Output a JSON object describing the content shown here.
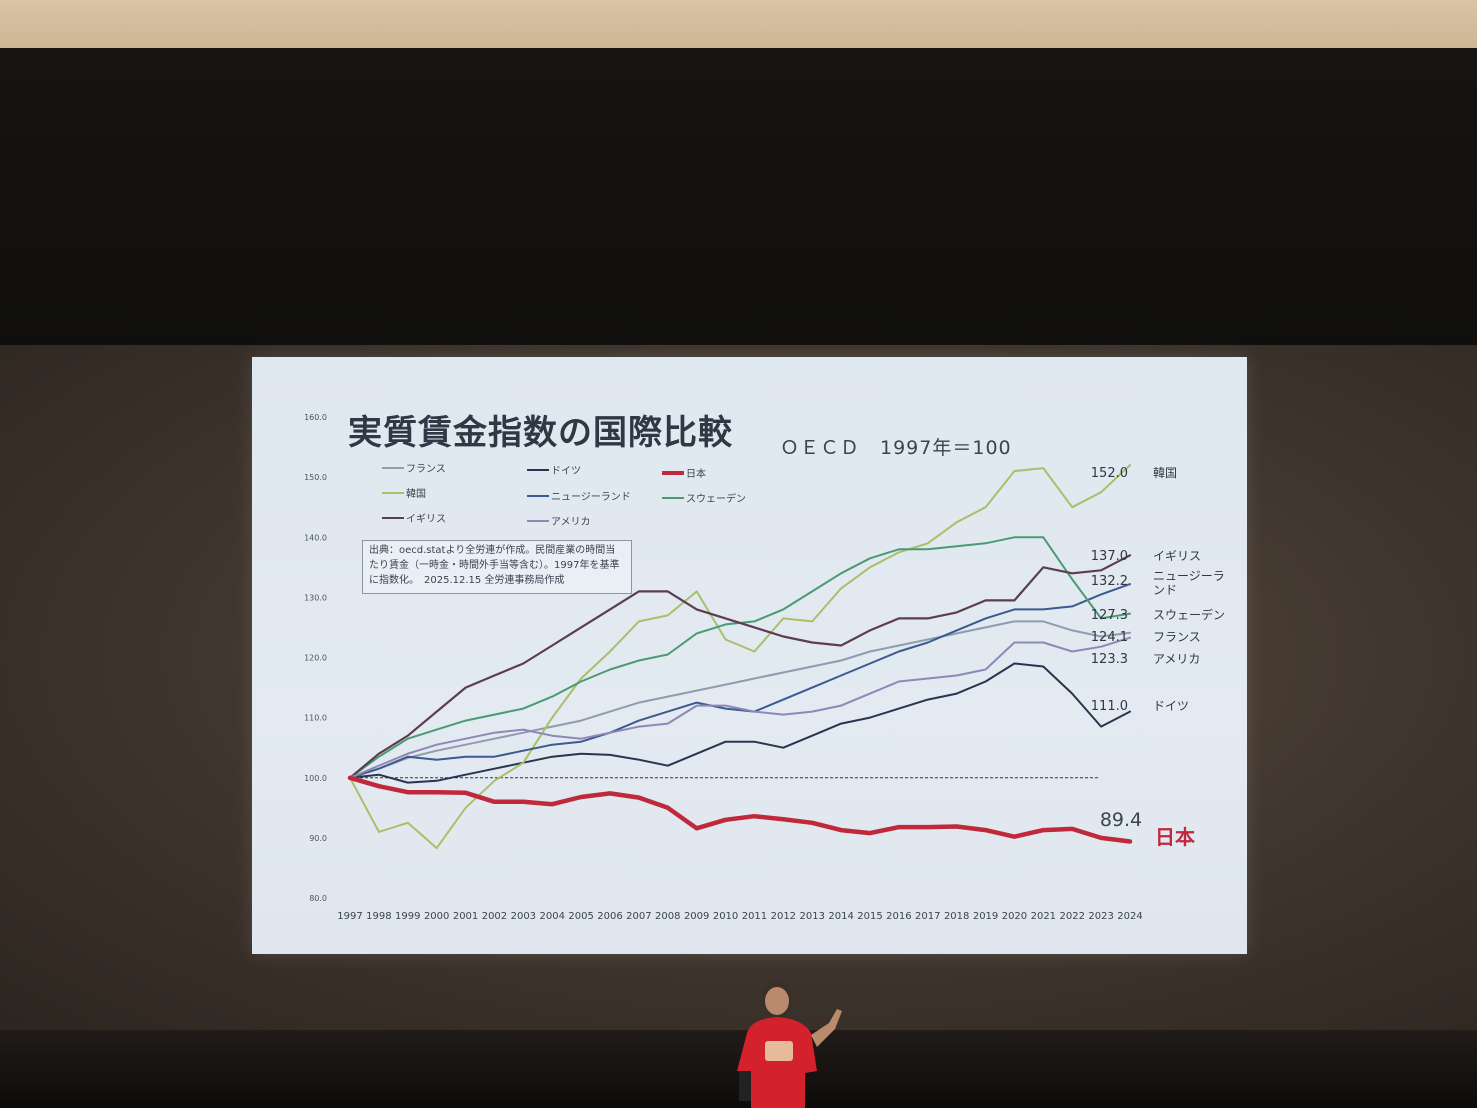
{
  "slide": {
    "title": "実質賃金指数の国際比較",
    "subtitle": "ＯＥＣＤ　1997年＝100",
    "source_note": "出典：oecd.statより全労連が作成。民間産業の時間当たり賃金（一時金・時間外手当等含む）。1997年を基準に指数化。　2025.12.15 全労連事務局作成"
  },
  "chart_data": {
    "type": "line",
    "title": "実質賃金指数の国際比較",
    "subtitle": "ＯＥＣＤ　1997年＝100",
    "x": [
      "1997",
      "1998",
      "1999",
      "2000",
      "2001",
      "2002",
      "2003",
      "2004",
      "2005",
      "2006",
      "2007",
      "2008",
      "2009",
      "2010",
      "2011",
      "2012",
      "2013",
      "2014",
      "2015",
      "2016",
      "2017",
      "2018",
      "2019",
      "2020",
      "2021",
      "2022",
      "2023",
      "2024"
    ],
    "y_ticks": [
      "160.0",
      "150.0",
      "140.0",
      "130.0",
      "120.0",
      "110.0",
      "100.0",
      "90.0",
      "80.0"
    ],
    "ylim": [
      80,
      160
    ],
    "baseline": 100,
    "legend_position": "top-left",
    "grid": false,
    "series": [
      {
        "name": "フランス",
        "color": "#8e9bb0",
        "width": 2,
        "end_label": "124.1",
        "end_name": "フランス",
        "values": [
          100,
          101.5,
          103.3,
          104.5,
          105.5,
          106.5,
          107.5,
          108.5,
          109.5,
          111,
          112.5,
          113.5,
          114.5,
          115.5,
          116.5,
          117.5,
          118.5,
          119.5,
          121,
          122,
          123,
          124,
          125,
          126,
          126,
          124.5,
          123.5,
          124.1
        ]
      },
      {
        "name": "ドイツ",
        "color": "#27354f",
        "width": 2,
        "end_label": "111.0",
        "end_name": "ドイツ",
        "values": [
          100,
          100.5,
          99.2,
          99.5,
          100.5,
          101.5,
          102.5,
          103.5,
          104,
          103.8,
          103,
          102,
          104,
          106,
          106,
          105,
          107,
          109,
          110,
          111.5,
          113,
          114,
          116,
          119,
          118.5,
          114,
          108.5,
          111
        ]
      },
      {
        "name": "日本",
        "color": "#c0293b",
        "width": 4.5,
        "end_label": "89.4",
        "end_name": "日本",
        "highlight": true,
        "values": [
          100,
          98.6,
          97.6,
          97.6,
          97.5,
          96,
          96,
          95.6,
          96.8,
          97.4,
          96.7,
          95,
          91.6,
          93,
          93.6,
          93.1,
          92.5,
          91.3,
          90.8,
          91.8,
          91.8,
          91.9,
          91.3,
          90.2,
          91.3,
          91.5,
          90,
          89.4
        ]
      },
      {
        "name": "韓国",
        "color": "#a8c06a",
        "width": 2,
        "end_label": "152.0",
        "end_name": "韓国",
        "values": [
          100,
          91,
          92.5,
          88.3,
          95,
          99.5,
          102.5,
          110,
          116.5,
          121,
          126,
          127,
          131,
          123,
          121,
          126.5,
          126,
          131.5,
          135,
          137.5,
          139,
          142.5,
          145,
          151,
          151.5,
          145,
          147.5,
          152
        ]
      },
      {
        "name": "ニュージーランド",
        "color": "#3a5a90",
        "width": 2,
        "end_label": "132.2",
        "end_name": "ニュージーランド",
        "values": [
          100,
          101.5,
          103.5,
          103,
          103.5,
          103.5,
          104.5,
          105.5,
          106,
          107.5,
          109.5,
          111,
          112.5,
          111.5,
          111,
          113,
          115,
          117,
          119,
          121,
          122.5,
          124.5,
          126.5,
          128,
          128,
          128.5,
          130.5,
          132.2
        ]
      },
      {
        "name": "スウェーデン",
        "color": "#4b9a74",
        "width": 2,
        "end_label": "127.3",
        "end_name": "スウェーデン",
        "values": [
          100,
          103.5,
          106.5,
          108,
          109.5,
          110.5,
          111.5,
          113.5,
          116,
          118,
          119.5,
          120.5,
          124,
          125.5,
          126,
          128,
          131,
          134,
          136.5,
          138,
          138,
          138.5,
          139,
          140,
          140,
          133,
          126.5,
          127.3
        ]
      },
      {
        "name": "イギリス",
        "color": "#5e3d4e",
        "width": 2.2,
        "end_label": "137.0",
        "end_name": "イギリス",
        "values": [
          100,
          104,
          107,
          111,
          115,
          117,
          119,
          122,
          125,
          128,
          131,
          131,
          128,
          126.5,
          125,
          123.5,
          122.5,
          122,
          124.5,
          126.5,
          126.5,
          127.5,
          129.5,
          129.5,
          135,
          134,
          134.5,
          137
        ]
      },
      {
        "name": "アメリカ",
        "color": "#8e88b8",
        "width": 2,
        "end_label": "123.3",
        "end_name": "アメリカ",
        "values": [
          100,
          102,
          104,
          105.5,
          106.5,
          107.5,
          108,
          107,
          106.5,
          107.5,
          108.5,
          109,
          112,
          112,
          111,
          110.5,
          111,
          112,
          114,
          116,
          116.5,
          117,
          118,
          122.5,
          122.5,
          121,
          121.8,
          123.3
        ]
      }
    ]
  }
}
